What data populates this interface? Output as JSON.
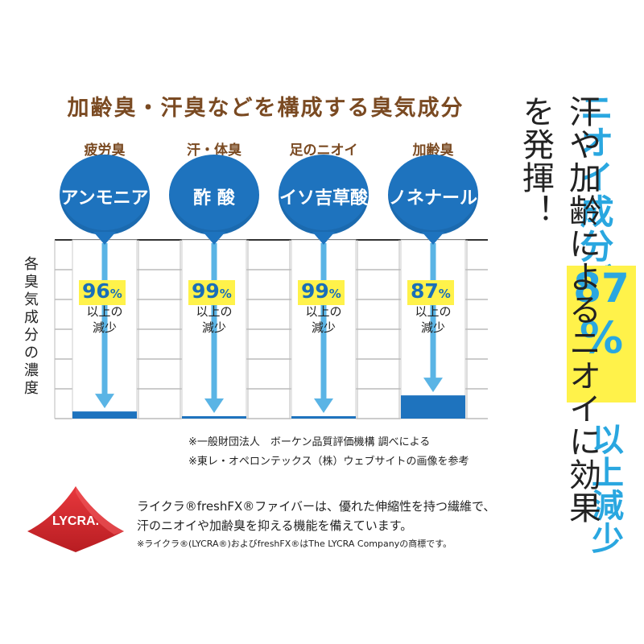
{
  "title": "加齢臭・汗臭などを構成する臭気成分",
  "y_axis_label": "各臭気成分の濃度",
  "chart_data": {
    "type": "bar",
    "categories": [
      "アンモニア",
      "酢 酸",
      "イソ吉草酸",
      "ノネナール"
    ],
    "odor_types": [
      "疲労臭",
      "汗・体臭",
      "足のニオイ",
      "加齢臭"
    ],
    "reduction_percent": [
      96,
      99,
      99,
      87
    ],
    "remaining_percent": [
      4,
      1,
      1,
      13
    ],
    "reduction_label": [
      "以上の",
      "減少"
    ],
    "ylabel": "各臭気成分の濃度",
    "ylim": [
      0,
      100
    ],
    "grid": true,
    "bar_color": "#1e73be",
    "arrow_color": "#5ab4e5"
  },
  "notes": [
    "※一般財団法人　ボーケン品質評価機構 調べによる",
    "※東レ・オペロンテックス（株）ウェブサイトの画像を参考"
  ],
  "right_panel": {
    "top": "ニオイ成分が",
    "big_number": "87",
    "big_unit": "%",
    "bottom": "以上減少",
    "main": "汗や加齢によるニオイに効果を発揮！"
  },
  "lycra": {
    "logo_text": "LYCRA.",
    "description_line1": "ライクラ®freshFX®ファイバーは、優れた伸縮性を持つ繊維で、",
    "description_line2": "汗のニオイや加齢臭を抑える機能を備えています。",
    "trademark": "※ライクラ®(LYCRA®)およびfreshFX®はThe LYCRA Companyの商標です。"
  },
  "colors": {
    "title": "#7a4a22",
    "bubble": "#1e73be",
    "accent_cyan": "#2aa7e0",
    "highlight_yellow": "#fff24a",
    "lycra_red": "#d9262b"
  }
}
